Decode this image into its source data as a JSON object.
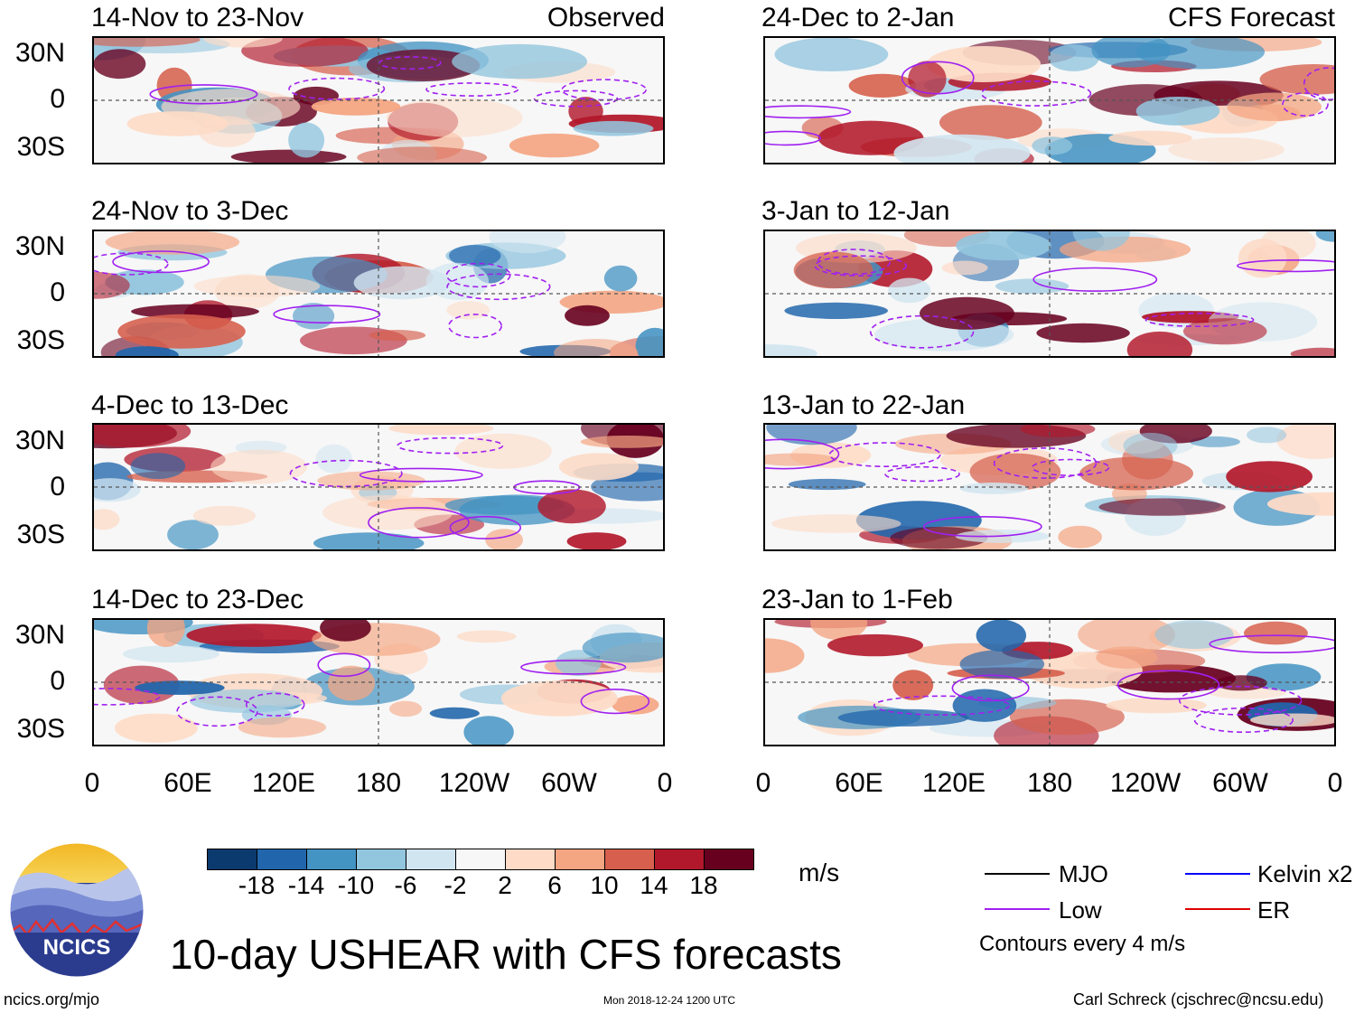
{
  "header": {
    "observed_label": "Observed",
    "forecast_label": "CFS Forecast"
  },
  "panels_left": [
    {
      "title": "14-Nov to 23-Nov"
    },
    {
      "title": "24-Nov to 3-Dec"
    },
    {
      "title": "4-Dec to 13-Dec"
    },
    {
      "title": "14-Dec to 23-Dec"
    }
  ],
  "panels_right": [
    {
      "title": "24-Dec to 2-Jan"
    },
    {
      "title": "3-Jan to 12-Jan"
    },
    {
      "title": "13-Jan to 22-Jan"
    },
    {
      "title": "23-Jan to 1-Feb"
    }
  ],
  "lat_labels": [
    "30N",
    "0",
    "30S"
  ],
  "lon_labels": [
    "0",
    "60E",
    "120E",
    "180",
    "120W",
    "60W",
    "0"
  ],
  "colorbar": {
    "ticks": [
      "-18",
      "-14",
      "-10",
      "-6",
      "-2",
      "2",
      "6",
      "10",
      "14",
      "18"
    ],
    "colors": [
      "#0b3a6e",
      "#2166ac",
      "#4393c3",
      "#92c5de",
      "#d1e5f0",
      "#f7f7f7",
      "#fddbc7",
      "#f4a582",
      "#d6604d",
      "#b2182b",
      "#67001f"
    ],
    "unit": "m/s"
  },
  "legend": {
    "mjo": "MJO",
    "low": "Low",
    "kelvin": "Kelvin x2",
    "er": "ER",
    "contours_note": "Contours every 4 m/s",
    "mjo_color": "#000000",
    "low_color": "#a020f0",
    "kelvin_color": "#0000ff",
    "er_color": "#e00000"
  },
  "title": "10-day USHEAR with CFS forecasts",
  "logo_text": "NCICS",
  "footer": {
    "url": "ncics.org/mjo",
    "timestamp": "Mon 2018-12-24 1200 UTC",
    "author": "Carl Schreck (cjschrec@ncsu.edu)"
  }
}
